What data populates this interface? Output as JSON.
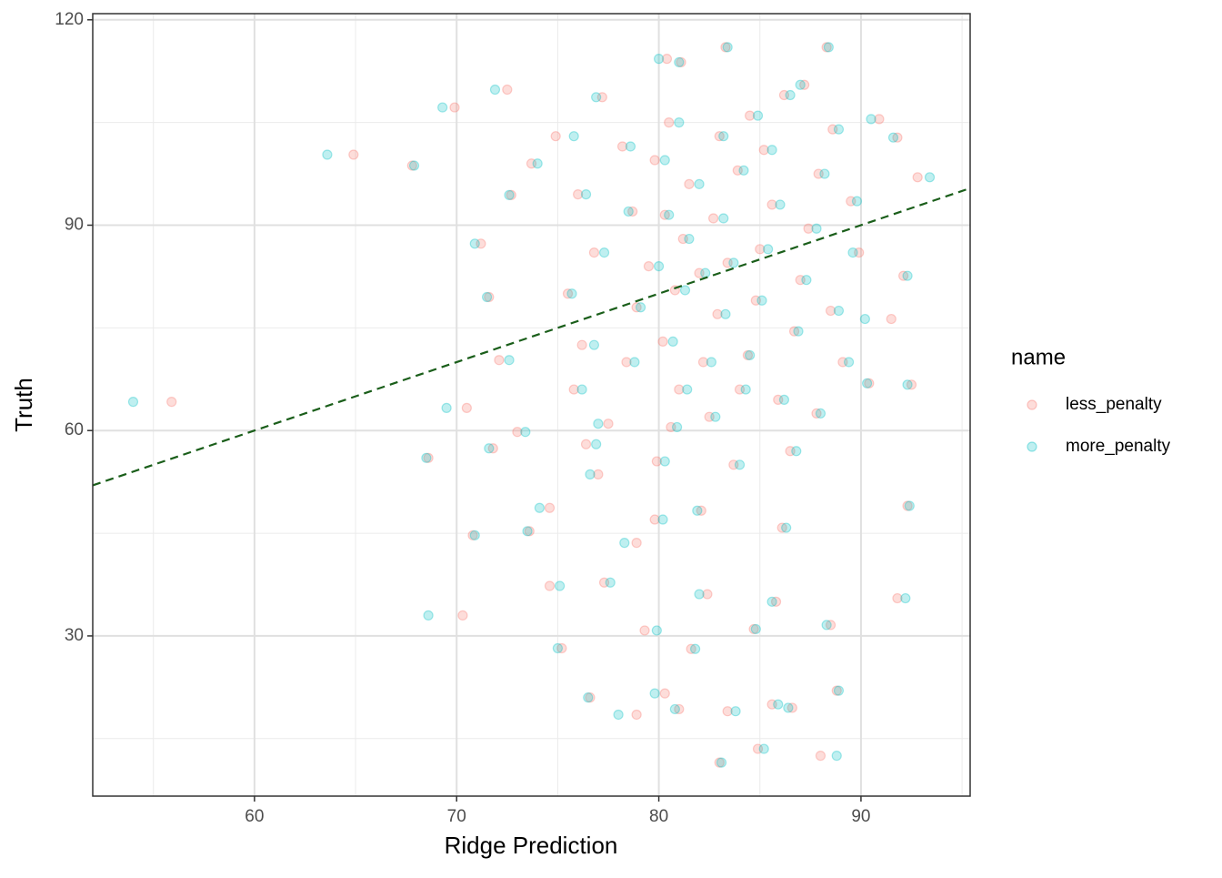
{
  "chart_data": {
    "type": "scatter",
    "x_label": "Ridge Prediction",
    "y_label": "Truth",
    "legend_title": "name",
    "xlim": [
      52.0,
      95.4
    ],
    "ylim": [
      6.6,
      120.9
    ],
    "xticks": [
      60,
      70,
      80,
      90
    ],
    "yticks": [
      30,
      60,
      90,
      120
    ],
    "xminor": [
      55,
      65,
      75,
      85,
      95
    ],
    "yminor": [
      15,
      45,
      75,
      105
    ],
    "grid": true,
    "legend": "right",
    "abline": {
      "slope": 1,
      "intercept": 0,
      "color": "#1a5e1a"
    },
    "series": [
      {
        "name": "less_penalty",
        "color": "#F8766D",
        "x": [
          55.9,
          64.9,
          67.8,
          68.6,
          70.3,
          70.8,
          69.9,
          72.5,
          73.6,
          74.6,
          75.2,
          76.6,
          78.9,
          80.3,
          81.0,
          83.4,
          85.6,
          86.6,
          88.8,
          88.0,
          83.0,
          84.9,
          92.3,
          91.8,
          92.8,
          88.3,
          87.2,
          83.3,
          80.4,
          81.1,
          77.2,
          90.9,
          91.8,
          92.1,
          91.5,
          90.4,
          92.5,
          88.5,
          86.1,
          79.3,
          81.6,
          77.3,
          84.7,
          82.4,
          78.9,
          79.8,
          82.1,
          85.8,
          77.0,
          74.6,
          73.0,
          71.8,
          70.5,
          72.1,
          71.6,
          71.2,
          72.7,
          73.7,
          74.9,
          76.0,
          76.8,
          75.5,
          76.2,
          75.8,
          77.5,
          78.4,
          78.9,
          79.5,
          78.7,
          79.8,
          80.5,
          81.5,
          81.2,
          80.8,
          80.2,
          81.0,
          80.6,
          82.5,
          82.2,
          82.9,
          83.4,
          82.7,
          83.9,
          84.5,
          85.2,
          85.6,
          85.0,
          84.8,
          84.4,
          85.9,
          86.7,
          87.0,
          87.4,
          87.9,
          88.6,
          88.5,
          89.1,
          87.8,
          86.5,
          83.7,
          79.9,
          76.4,
          89.9,
          89.5,
          84.0,
          82.0,
          80.3,
          78.2,
          83.0,
          86.2
        ],
        "values": [
          64.2,
          100.3,
          98.7,
          56.0,
          33.0,
          44.7,
          107.2,
          109.8,
          45.3,
          37.3,
          28.2,
          21.0,
          18.5,
          21.6,
          19.3,
          19.0,
          20.0,
          19.5,
          22.0,
          12.5,
          11.5,
          13.5,
          49.0,
          35.5,
          97.0,
          116.0,
          110.5,
          116.0,
          114.3,
          113.8,
          108.7,
          105.5,
          102.8,
          82.6,
          76.3,
          66.9,
          66.7,
          31.6,
          45.8,
          30.8,
          28.1,
          37.8,
          31.0,
          36.1,
          43.6,
          47.0,
          48.3,
          35.0,
          53.6,
          48.7,
          59.8,
          57.4,
          63.3,
          70.3,
          79.5,
          87.3,
          94.4,
          99.0,
          103.0,
          94.5,
          86.0,
          80.0,
          72.5,
          66.0,
          61.0,
          70.0,
          78.0,
          84.0,
          92.0,
          99.5,
          105.0,
          96.0,
          88.0,
          80.5,
          73.0,
          66.0,
          60.5,
          62.0,
          70.0,
          77.0,
          84.5,
          91.0,
          98.0,
          106.0,
          101.0,
          93.0,
          86.5,
          79.0,
          71.0,
          64.5,
          74.5,
          82.0,
          89.5,
          97.5,
          104.0,
          77.5,
          70.0,
          62.5,
          57.0,
          55.0,
          55.5,
          58.0,
          86.0,
          93.5,
          66.0,
          83.0,
          91.5,
          101.5,
          103.0,
          109.0
        ]
      },
      {
        "name": "more_penalty",
        "color": "#00BFC4",
        "x": [
          54.0,
          63.6,
          67.9,
          68.5,
          68.6,
          70.9,
          69.3,
          71.9,
          73.5,
          75.1,
          75.0,
          76.5,
          78.0,
          79.8,
          80.8,
          83.8,
          85.9,
          86.4,
          88.9,
          88.8,
          83.1,
          85.2,
          92.4,
          92.2,
          93.4,
          88.4,
          87.0,
          83.4,
          80.0,
          81.0,
          76.9,
          90.5,
          91.6,
          92.3,
          90.2,
          90.3,
          92.3,
          88.3,
          86.3,
          79.9,
          81.8,
          77.6,
          84.8,
          82.0,
          78.3,
          80.2,
          81.9,
          85.6,
          76.6,
          74.1,
          73.4,
          71.6,
          69.5,
          72.6,
          71.5,
          70.9,
          72.6,
          74.0,
          75.8,
          76.4,
          77.3,
          75.7,
          76.8,
          76.2,
          77.0,
          78.8,
          79.1,
          80.0,
          78.5,
          80.3,
          81.0,
          82.0,
          81.5,
          81.3,
          80.7,
          81.4,
          80.9,
          82.8,
          82.6,
          83.3,
          83.7,
          83.2,
          84.2,
          84.9,
          85.6,
          86.0,
          85.4,
          85.1,
          84.5,
          86.2,
          86.9,
          87.3,
          87.8,
          88.2,
          88.9,
          88.9,
          89.4,
          88.0,
          86.8,
          84.0,
          80.3,
          76.9,
          89.6,
          89.8,
          84.3,
          82.3,
          80.5,
          78.6,
          83.2,
          86.5
        ],
        "values": [
          64.2,
          100.3,
          98.7,
          56.0,
          33.0,
          44.7,
          107.2,
          109.8,
          45.3,
          37.3,
          28.2,
          21.0,
          18.5,
          21.6,
          19.3,
          19.0,
          20.0,
          19.5,
          22.0,
          12.5,
          11.5,
          13.5,
          49.0,
          35.5,
          97.0,
          116.0,
          110.5,
          116.0,
          114.3,
          113.8,
          108.7,
          105.5,
          102.8,
          82.6,
          76.3,
          66.9,
          66.7,
          31.6,
          45.8,
          30.8,
          28.1,
          37.8,
          31.0,
          36.1,
          43.6,
          47.0,
          48.3,
          35.0,
          53.6,
          48.7,
          59.8,
          57.4,
          63.3,
          70.3,
          79.5,
          87.3,
          94.4,
          99.0,
          103.0,
          94.5,
          86.0,
          80.0,
          72.5,
          66.0,
          61.0,
          70.0,
          78.0,
          84.0,
          92.0,
          99.5,
          105.0,
          96.0,
          88.0,
          80.5,
          73.0,
          66.0,
          60.5,
          62.0,
          70.0,
          77.0,
          84.5,
          91.0,
          98.0,
          106.0,
          101.0,
          93.0,
          86.5,
          79.0,
          71.0,
          64.5,
          74.5,
          82.0,
          89.5,
          97.5,
          104.0,
          77.5,
          70.0,
          62.5,
          57.0,
          55.0,
          55.5,
          58.0,
          86.0,
          93.5,
          66.0,
          83.0,
          91.5,
          101.5,
          103.0,
          109.0
        ]
      }
    ]
  }
}
